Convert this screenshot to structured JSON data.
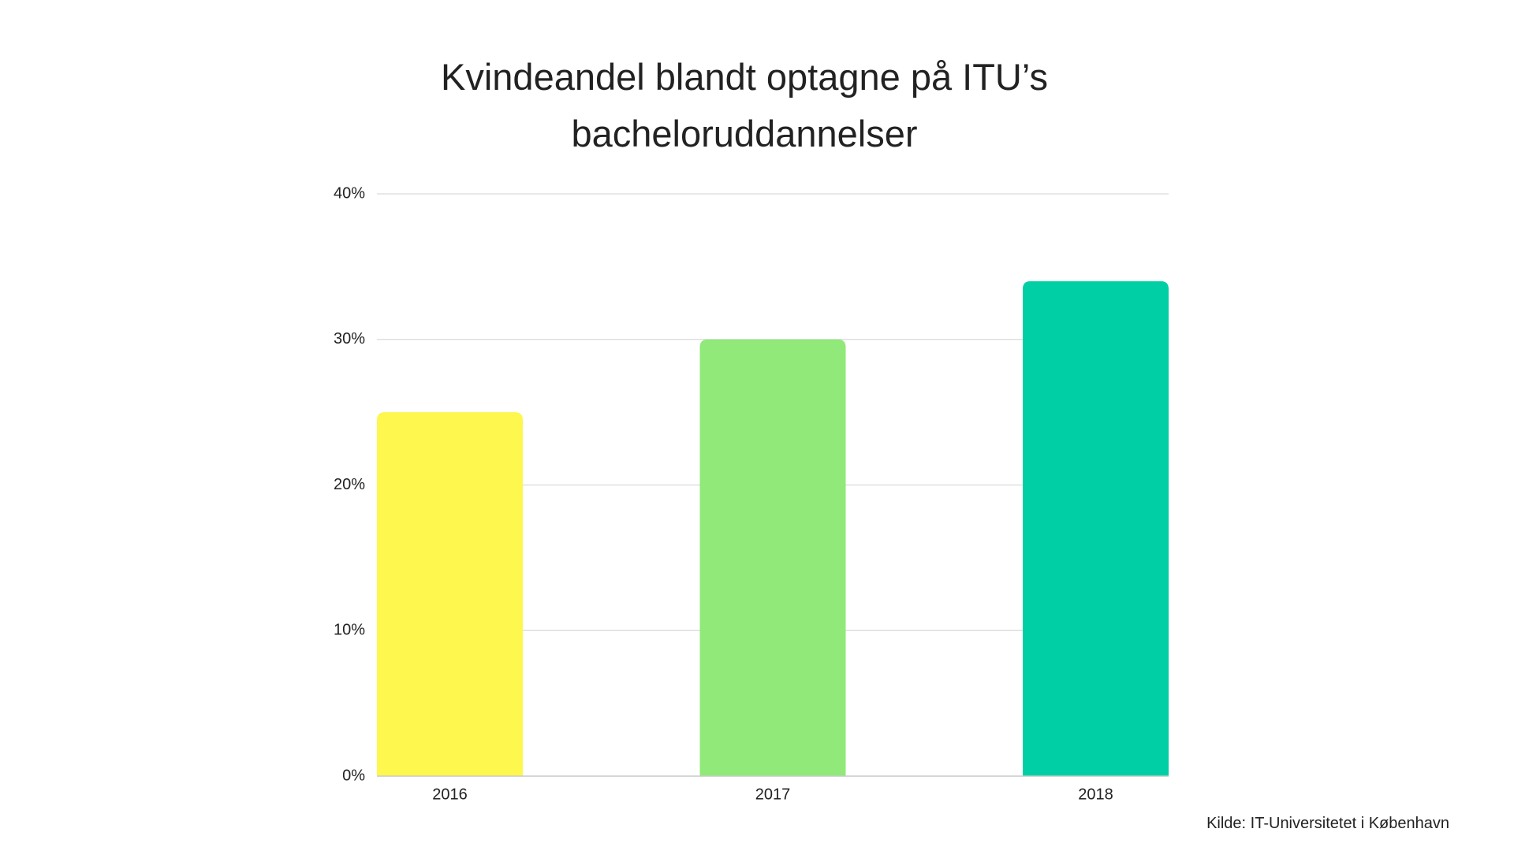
{
  "chart_data": {
    "type": "bar",
    "title": "Kvindeandel blandt optagne på ITU’s bacheloruddannelser",
    "categories": [
      "2016",
      "2017",
      "2018"
    ],
    "values": [
      25,
      30,
      34
    ],
    "colors": [
      "#fdf74e",
      "#90e978",
      "#00cfa5"
    ],
    "ylim": [
      0,
      40
    ],
    "yticks": [
      {
        "value": 0,
        "label": "0%"
      },
      {
        "value": 10,
        "label": "10%"
      },
      {
        "value": 20,
        "label": "20%"
      },
      {
        "value": 30,
        "label": "30%"
      },
      {
        "value": 40,
        "label": "40%"
      }
    ],
    "grid": true,
    "source": "Kilde: IT-Universitetet i København"
  }
}
